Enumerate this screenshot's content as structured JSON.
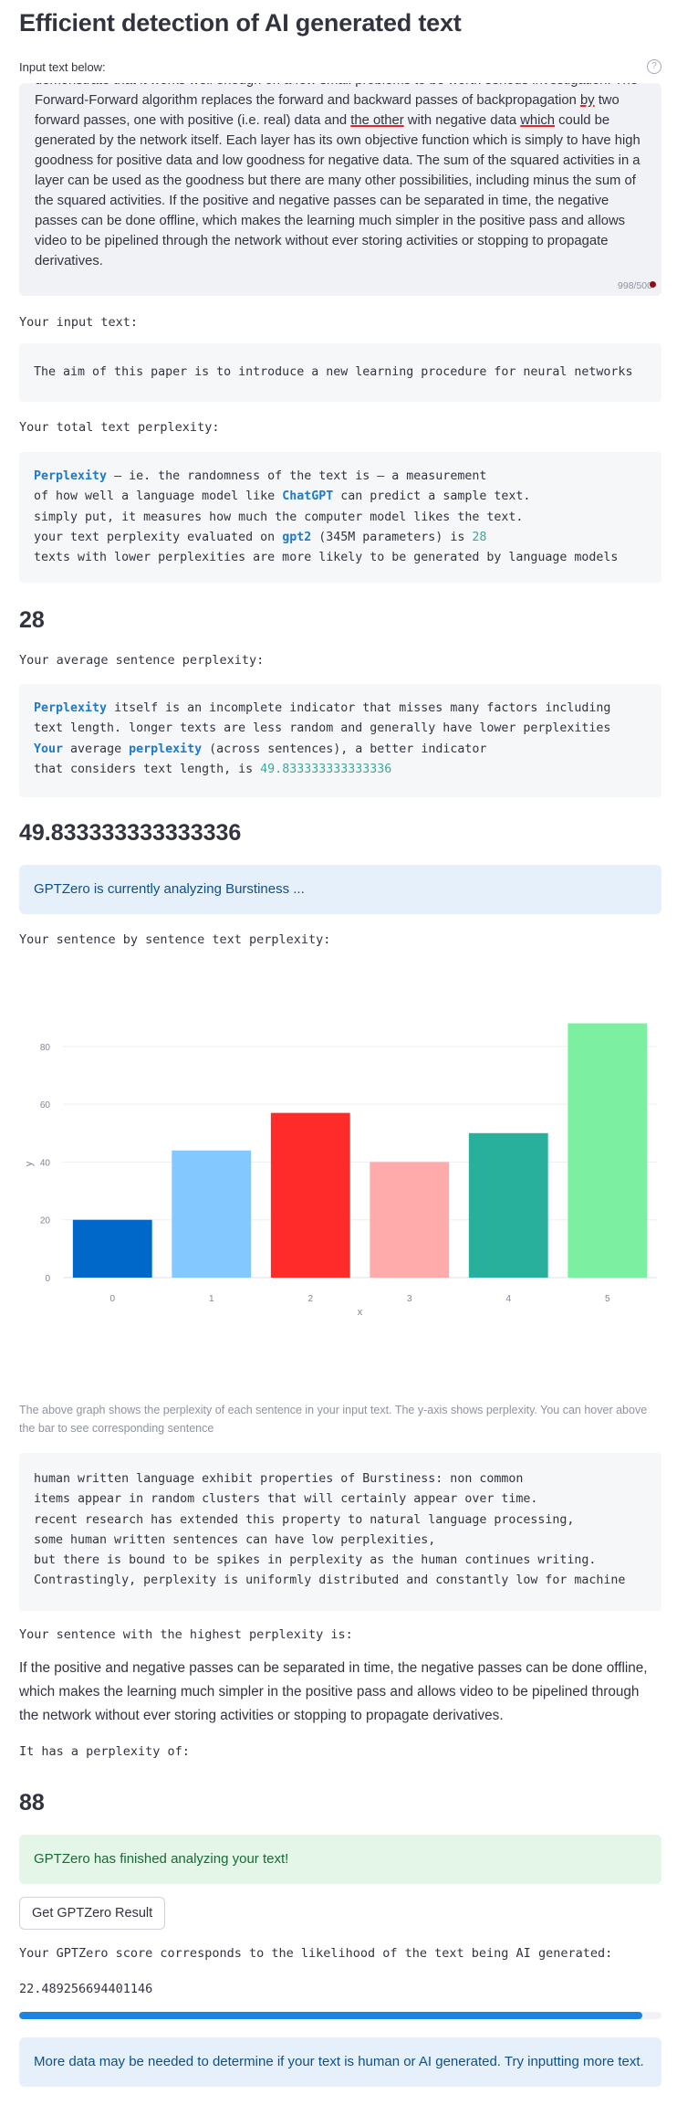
{
  "title": "Efficient detection of AI generated text",
  "input": {
    "label": "Input text below:",
    "help_icon": "?",
    "text_segments": [
      {
        "t": "demonstrate that it works well enough on a few small problems to be worth serious investigation. The Forward-Forward algorithm replaces the forward and backward passes of backpropagation "
      },
      {
        "t": "by",
        "u": true
      },
      {
        "t": " two forward passes, one with positive (i.e. real) data and "
      },
      {
        "t": "the other",
        "u": true
      },
      {
        "t": " with negative data "
      },
      {
        "t": "which",
        "u": true
      },
      {
        "t": " could be generated by the network itself. Each layer has its own objective function which is simply to have high goodness for positive data and low goodness for negative data. The sum of the squared activities in a layer can be used as the goodness but there are many other possibilities, including minus the sum of the squared activities. If the positive and negative passes can be separated in time, the negative passes can be done offline, which makes the learning much simpler in the positive pass and allows video to be pipelined through the network without ever storing activities or stopping to propagate derivatives."
      }
    ],
    "counter": "998/500"
  },
  "input_text_label": "Your input text:",
  "input_text_value": "The aim of this paper is to introduce a new learning procedure for neural networks",
  "total_ppl_label": "Your total text perplexity:",
  "total_ppl_box": {
    "l1_kw": "Perplexity",
    "l1_rest": " — ie. the randomness of the text is — a measurement",
    "l2_pre": "of how well a language model like ",
    "l2_kw": "ChatGPT",
    "l2_post": " can predict a sample text.",
    "l3": "simply put, it measures how much the computer model likes the text.",
    "l4_pre": "your text perplexity evaluated on ",
    "l4_kw": "gpt2",
    "l4_mid": " (345M parameters) is ",
    "l4_num": "28",
    "l5": "texts with lower perplexities are more likely to be generated by language models"
  },
  "total_ppl_value": "28",
  "avg_ppl_label": "Your average sentence perplexity:",
  "avg_ppl_box": {
    "l1_kw": "Perplexity",
    "l1_rest": " itself is an incomplete indicator that misses many factors including",
    "l2": "text length. longer texts are less random and generally have lower perplexities",
    "l3_kw1": "Your",
    "l3_mid": " average ",
    "l3_kw2": "perplexity",
    "l3_post": " (across sentences), a better indicator",
    "l4_pre": "that considers text length, is ",
    "l4_num": "49.833333333333336"
  },
  "avg_ppl_value": "49.833333333333336",
  "burst_info": "GPTZero is currently analyzing Burstiness ...",
  "sentence_ppl_label": "Your sentence by sentence text perplexity:",
  "chart_data": {
    "type": "bar",
    "categories": [
      "0",
      "1",
      "2",
      "3",
      "4",
      "5"
    ],
    "values": [
      20,
      44,
      57,
      40,
      50,
      88
    ],
    "colors": [
      "#0068c9",
      "#83c9ff",
      "#ff2b2b",
      "#ffabab",
      "#29b09d",
      "#7defa1"
    ],
    "xlabel": "x",
    "ylabel": "y",
    "yticks": [
      0,
      20,
      40,
      60,
      80
    ],
    "ylim": [
      0,
      92.6
    ],
    "grid": true
  },
  "chart_caption": "The above graph shows the perplexity of each sentence in your input text. The y-axis shows perplexity. You can hover above the bar to see corresponding sentence",
  "burst_box": {
    "l1": "human written language exhibit properties of Burstiness: non common",
    "l2": "items appear in random clusters that will certainly appear over time.",
    "l3": "recent research has extended this property to natural language processing,",
    "l4": "some human written sentences can have low perplexities,",
    "l5": "but there is bound to be spikes in perplexity as the human continues writing.",
    "l6": "Contrastingly, perplexity is uniformly distributed and constantly low for machine"
  },
  "highest_label": "Your sentence with the highest perplexity is:",
  "highest_sentence": "If the positive and negative passes can be separated in time, the negative passes can be done offline, which makes the learning much simpler in the positive pass and allows video to be pipelined through the network without ever storing activities or stopping to propagate derivatives.",
  "highest_ppl_label": "It has a perplexity of:",
  "highest_ppl_value": "88",
  "finished_info": "GPTZero has finished analyzing your text!",
  "result_button": "Get GPTZero Result",
  "score_label": "Your GPTZero score corresponds to the likelihood of the text being AI generated:",
  "score_value": "22.489256694401146",
  "progress_fraction": 0.97,
  "more_data_info": "More data may be needed to determine if your text is human or AI generated. Try inputting more text."
}
